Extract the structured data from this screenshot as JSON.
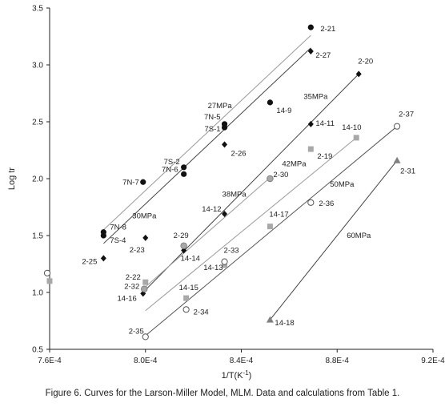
{
  "chart_data": {
    "type": "scatter",
    "xlabel": "1/T(K",
    "xlabel_sup": "-1",
    "xlabel_close": ")",
    "ylabel": "Log tr",
    "xlim": [
      0.00076,
      0.00092
    ],
    "ylim": [
      0.5,
      3.5
    ],
    "xticks": [
      0.00076,
      0.0008,
      0.00084,
      0.00088,
      0.00092
    ],
    "xtick_labels": [
      "7.6E-4",
      "8.0E-4",
      "8.4E-4",
      "8.8E-4",
      "9.2E-4"
    ],
    "yticks": [
      0.5,
      1.0,
      1.5,
      2.0,
      2.5,
      3.0,
      3.5
    ],
    "ytick_labels": [
      "0.5",
      "1.0",
      "1.5",
      "2.0",
      "2.5",
      "3.0",
      "3.5"
    ],
    "grid": false,
    "legend": "none",
    "series": [
      {
        "marker": "circle-filled",
        "color": "#111111",
        "points": [
          {
            "x": 0.0007825,
            "y": 1.53,
            "label": "7N-8"
          },
          {
            "x": 0.0007825,
            "y": 1.5,
            "label": "7S-4"
          },
          {
            "x": 0.000799,
            "y": 1.97,
            "label": "7N-7"
          },
          {
            "x": 0.000816,
            "y": 2.1,
            "label": "7S-2"
          },
          {
            "x": 0.000816,
            "y": 2.04,
            "label": "7N-6"
          },
          {
            "x": 0.000833,
            "y": 2.48,
            "label": "7N-5"
          },
          {
            "x": 0.000833,
            "y": 2.45,
            "label": "7S-1"
          },
          {
            "x": 0.000852,
            "y": 2.67,
            "label": "14-9"
          },
          {
            "x": 0.000869,
            "y": 3.33,
            "label": "2-21"
          }
        ]
      },
      {
        "marker": "diamond-filled",
        "color": "#111111",
        "points": [
          {
            "x": 0.0007825,
            "y": 1.3,
            "label": "2-25"
          },
          {
            "x": 0.0008,
            "y": 1.48,
            "label": "2-23"
          },
          {
            "x": 0.000816,
            "y": 1.37,
            "label": "14-14"
          },
          {
            "x": 0.000799,
            "y": 0.99,
            "label": "14-16"
          },
          {
            "x": 0.000833,
            "y": 2.3,
            "label": "2-26"
          },
          {
            "x": 0.000833,
            "y": 1.69,
            "label": "14-12"
          },
          {
            "x": 0.000869,
            "y": 3.12,
            "label": "2-27"
          },
          {
            "x": 0.000869,
            "y": 2.48,
            "label": "14-11"
          },
          {
            "x": 0.000889,
            "y": 2.92,
            "label": "2-20"
          }
        ]
      },
      {
        "marker": "circle-gray",
        "color": "#a8a8a8",
        "points": [
          {
            "x": 0.0007995,
            "y": 1.03,
            "label": "2-32"
          },
          {
            "x": 0.000816,
            "y": 1.41,
            "label": "2-29"
          },
          {
            "x": 0.000852,
            "y": 2.0,
            "label": "2-30"
          }
        ]
      },
      {
        "marker": "square-gray",
        "color": "#a8a8a8",
        "points": [
          {
            "x": 0.0008,
            "y": 1.09,
            "label": "2-22"
          },
          {
            "x": 0.000817,
            "y": 0.95,
            "label": "14-15"
          },
          {
            "x": 0.000833,
            "y": 1.24,
            "label": "14-13"
          },
          {
            "x": 0.000852,
            "y": 1.58,
            "label": "14-17"
          },
          {
            "x": 0.000869,
            "y": 2.26,
            "label": "2-19"
          },
          {
            "x": 0.000888,
            "y": 2.36,
            "label": "14-10"
          },
          {
            "x": 0.00076,
            "y": 1.1,
            "label": ""
          }
        ]
      },
      {
        "marker": "circle-open",
        "color": "#555555",
        "points": [
          {
            "x": 0.0008,
            "y": 0.61,
            "label": "2-35"
          },
          {
            "x": 0.000817,
            "y": 0.85,
            "label": "2-34"
          },
          {
            "x": 0.000833,
            "y": 1.27,
            "label": "2-33"
          },
          {
            "x": 0.000869,
            "y": 1.79,
            "label": "2-36"
          },
          {
            "x": 0.000905,
            "y": 2.46,
            "label": "2-37"
          },
          {
            "x": 0.000759,
            "y": 1.17,
            "label": ""
          }
        ]
      },
      {
        "marker": "triangle-gray",
        "color": "#808080",
        "points": [
          {
            "x": 0.000852,
            "y": 0.76,
            "label": "14-18"
          },
          {
            "x": 0.000905,
            "y": 2.16,
            "label": "2-31"
          }
        ]
      }
    ],
    "fit_lines": [
      {
        "label": "27MPa",
        "color": "#999999",
        "x": [
          0.0007825,
          0.000869
        ],
        "y": [
          1.55,
          3.26
        ]
      },
      {
        "label": "30MPa",
        "color": "#444444",
        "x": [
          0.0007825,
          0.000869
        ],
        "y": [
          1.43,
          3.15
        ]
      },
      {
        "label": "35MPa",
        "color": "#444444",
        "x": [
          0.000799,
          0.000889
        ],
        "y": [
          1.0,
          2.92
        ]
      },
      {
        "label": "38MPa",
        "color": "#999999",
        "x": [
          0.0007995,
          0.000852
        ],
        "y": [
          1.04,
          2.01
        ]
      },
      {
        "label": "42MPa",
        "color": "#999999",
        "x": [
          0.0008,
          0.000888
        ],
        "y": [
          0.84,
          2.36
        ]
      },
      {
        "label": "50MPa",
        "color": "#555555",
        "x": [
          0.0008,
          0.000905
        ],
        "y": [
          0.62,
          2.46
        ]
      },
      {
        "label": "60MPa",
        "color": "#444444",
        "x": [
          0.000852,
          0.000905
        ],
        "y": [
          0.76,
          2.16
        ]
      }
    ]
  },
  "caption": "Figure 6.  Curves for the Larson-Miller Model, MLM. Data and calculations from Table 1."
}
